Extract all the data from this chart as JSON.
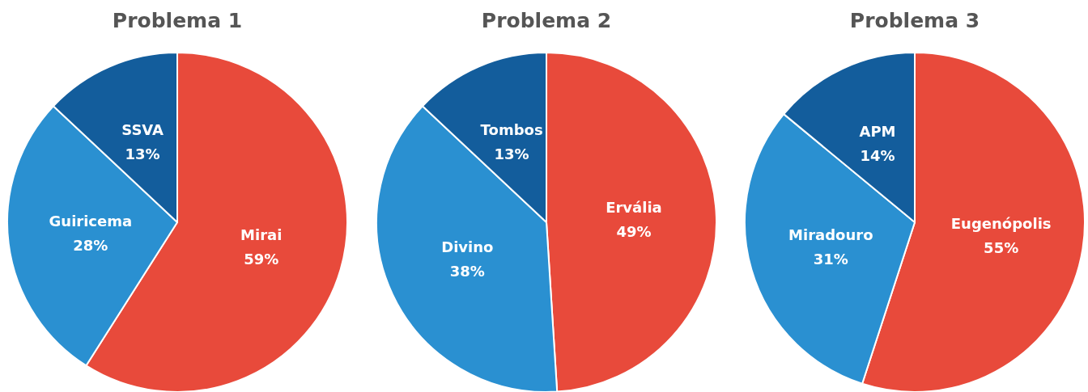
{
  "chart_data": [
    {
      "type": "pie",
      "title": "Problema 1",
      "categories": [
        "Mirai",
        "Guiricema",
        "SSVA"
      ],
      "values": [
        59,
        28,
        13
      ],
      "value_labels": [
        "59%",
        "28%",
        "13%"
      ],
      "colors": [
        "#e84a3b",
        "#2a90d1",
        "#135d9c"
      ],
      "legend": false
    },
    {
      "type": "pie",
      "title": "Problema 2",
      "categories": [
        "Ervália",
        "Divino",
        "Tombos"
      ],
      "values": [
        49,
        38,
        13
      ],
      "value_labels": [
        "49%",
        "38%",
        "13%"
      ],
      "colors": [
        "#e84a3b",
        "#2a90d1",
        "#135d9c"
      ],
      "legend": false
    },
    {
      "type": "pie",
      "title": "Problema 3",
      "categories": [
        "Eugenópolis",
        "Miradouro",
        "APM"
      ],
      "values": [
        55,
        31,
        14
      ],
      "value_labels": [
        "55%",
        "31%",
        "14%"
      ],
      "colors": [
        "#e84a3b",
        "#2a90d1",
        "#135d9c"
      ],
      "legend": false
    }
  ]
}
